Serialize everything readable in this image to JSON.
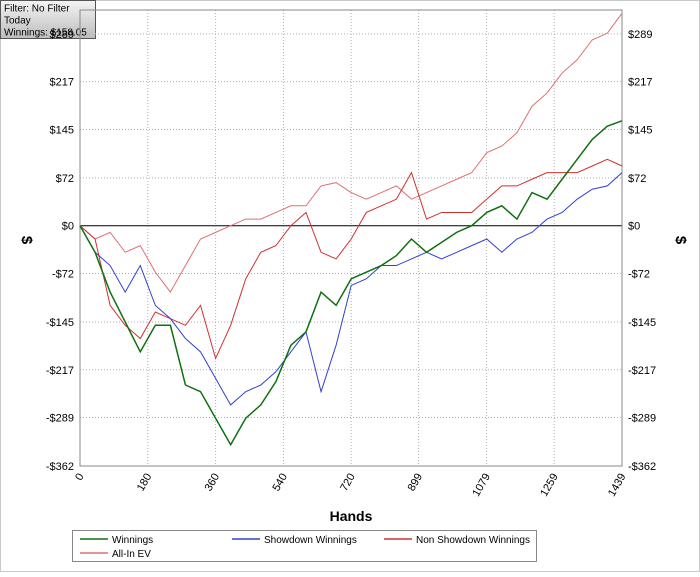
{
  "info": {
    "lines": [
      "Filter: No Filter",
      "Today",
      "Winnings: $158.05"
    ]
  },
  "chart_data": {
    "type": "line",
    "xlabel": "Hands",
    "ylabel": "$",
    "x": [
      0,
      40,
      80,
      120,
      160,
      200,
      240,
      280,
      320,
      360,
      400,
      440,
      480,
      520,
      560,
      600,
      640,
      680,
      720,
      760,
      800,
      840,
      880,
      920,
      960,
      1000,
      1040,
      1080,
      1120,
      1160,
      1200,
      1240,
      1280,
      1320,
      1360,
      1400,
      1439
    ],
    "xlim": [
      0,
      1439
    ],
    "xticks": [
      0,
      180,
      360,
      540,
      720,
      899,
      1079,
      1259,
      1439
    ],
    "ylim": [
      -362,
      325
    ],
    "yticks": [
      {
        "value": -362,
        "label": "-$362"
      },
      {
        "value": -289,
        "label": "-$289"
      },
      {
        "value": -217,
        "label": "-$217"
      },
      {
        "value": -145,
        "label": "-$145"
      },
      {
        "value": -72,
        "label": "-$72"
      },
      {
        "value": 0,
        "label": "$0"
      },
      {
        "value": 72,
        "label": "$72"
      },
      {
        "value": 145,
        "label": "$145"
      },
      {
        "value": 217,
        "label": "$217"
      },
      {
        "value": 289,
        "label": "$289"
      }
    ],
    "grid": true,
    "series": [
      {
        "name": "Winnings",
        "color": "#107010",
        "values": [
          0,
          -40,
          -100,
          -145,
          -190,
          -150,
          -150,
          -240,
          -250,
          -290,
          -330,
          -290,
          -270,
          -235,
          -180,
          -160,
          -100,
          -120,
          -80,
          -70,
          -60,
          -45,
          -20,
          -40,
          -25,
          -10,
          0,
          20,
          30,
          10,
          50,
          40,
          70,
          100,
          130,
          150,
          158.05
        ]
      },
      {
        "name": "Showdown Winnings",
        "color": "#3040d0",
        "values": [
          0,
          -40,
          -60,
          -100,
          -60,
          -120,
          -140,
          -170,
          -190,
          -230,
          -270,
          -250,
          -240,
          -220,
          -190,
          -160,
          -250,
          -180,
          -90,
          -80,
          -60,
          -60,
          -50,
          -40,
          -50,
          -40,
          -30,
          -20,
          -40,
          -20,
          -10,
          10,
          20,
          40,
          55,
          60,
          80
        ]
      },
      {
        "name": "Non Showdown Winnings",
        "color": "#d03030",
        "values": [
          0,
          -20,
          -120,
          -150,
          -170,
          -130,
          -140,
          -150,
          -120,
          -200,
          -150,
          -80,
          -40,
          -30,
          0,
          20,
          -40,
          -50,
          -20,
          20,
          30,
          40,
          80,
          10,
          20,
          20,
          20,
          40,
          60,
          60,
          70,
          80,
          80,
          80,
          90,
          100,
          90
        ]
      },
      {
        "name": "All-In EV",
        "color": "#e07070",
        "values": [
          0,
          -20,
          -10,
          -40,
          -30,
          -70,
          -100,
          -60,
          -20,
          -10,
          0,
          10,
          10,
          20,
          30,
          30,
          60,
          65,
          50,
          40,
          50,
          60,
          40,
          50,
          60,
          70,
          80,
          110,
          120,
          140,
          180,
          200,
          230,
          250,
          280,
          290,
          320
        ]
      }
    ]
  }
}
